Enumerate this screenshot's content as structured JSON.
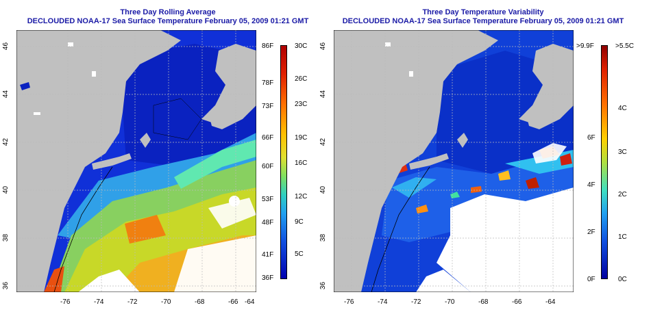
{
  "left_panel": {
    "title_line1": "Three Day Rolling Average",
    "title_line2": "DECLOUDED NOAA-17 Sea Surface Temperature February 05, 2009 01:21 GMT",
    "x_ticks": [
      "-76",
      "-74",
      "-72",
      "-70",
      "-68",
      "-66",
      "-64"
    ],
    "y_ticks": [
      "46",
      "44",
      "42",
      "40",
      "38",
      "36"
    ],
    "colorbar_f": [
      "86F",
      "78F",
      "73F",
      "66F",
      "60F",
      "53F",
      "48F",
      "41F",
      "36F"
    ],
    "colorbar_c": [
      "30C",
      "26C",
      "23C",
      "19C",
      "16C",
      "12C",
      "9C",
      "5C"
    ]
  },
  "right_panel": {
    "title_line1": "Three Day Temperature Variability",
    "title_line2": "DECLOUDED NOAA-17 Sea Surface Temperature February 05, 2009 01:21 GMT",
    "x_ticks": [
      "-76",
      "-74",
      "-72",
      "-70",
      "-68",
      "-66",
      "-64"
    ],
    "y_ticks": [
      "46",
      "44",
      "42",
      "40",
      "38",
      "36"
    ],
    "colorbar_f": [
      ">9.9F",
      "6F",
      "4F",
      "2F",
      "0F"
    ],
    "colorbar_c": [
      ">5.5C",
      "4C",
      "3C",
      "2C",
      "1C",
      "0C"
    ]
  },
  "colors": {
    "land": "#c0c0c0",
    "cloud": "#ffffff",
    "title": "#1a1aa6",
    "cold": "#0000b4",
    "warm": "#ff8800"
  }
}
